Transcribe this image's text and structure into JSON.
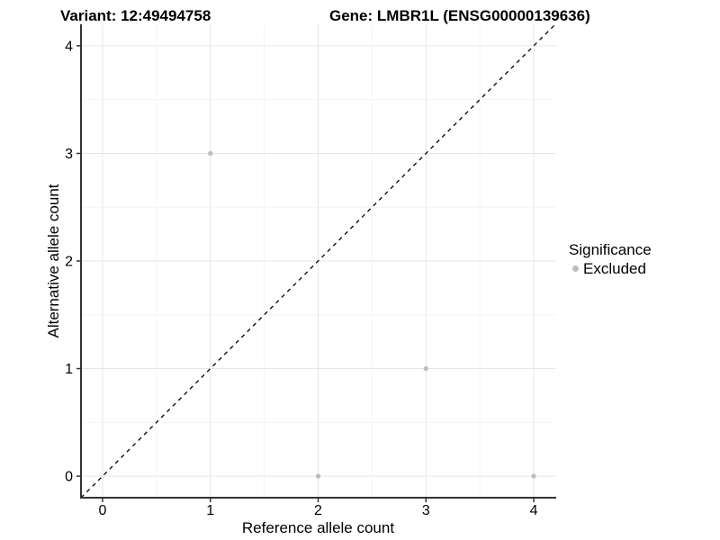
{
  "titles": {
    "left": "Variant: 12:49494758",
    "right": "Gene: LMBR1L (ENSG00000139636)"
  },
  "legend": {
    "title": "Significance",
    "entries": [
      {
        "label": "Excluded",
        "color": "#bebebe"
      }
    ]
  },
  "chart_data": {
    "type": "scatter",
    "title": "Variant: 12:49494758  |  Gene: LMBR1L (ENSG00000139636)",
    "xlabel": "Reference allele count",
    "ylabel": "Alternative allele count",
    "xlim": [
      -0.2,
      4.2
    ],
    "ylim": [
      -0.2,
      4.2
    ],
    "x_ticks": [
      0,
      1,
      2,
      3,
      4
    ],
    "y_ticks": [
      0,
      1,
      2,
      3,
      4
    ],
    "x_minor_ticks": [
      0.5,
      1.5,
      2.5,
      3.5
    ],
    "y_minor_ticks": [
      0.5,
      1.5,
      2.5,
      3.5
    ],
    "grid": true,
    "legend_position": "right",
    "series": [
      {
        "name": "Excluded",
        "color": "#bebebe",
        "marker": "circle",
        "marker_radius": 2.7,
        "points": [
          [
            1,
            3
          ],
          [
            2,
            0
          ],
          [
            3,
            1
          ],
          [
            4,
            0
          ]
        ]
      }
    ],
    "reference_line": {
      "type": "identity",
      "style": "dashed",
      "color": "#000000",
      "dash": [
        4.5,
        4.5
      ],
      "width": 1.3
    },
    "colors": {
      "axis": "#333333",
      "grid_major": "#e6e6e6",
      "grid_minor": "#f4f4f4",
      "tick_label": "#000000"
    },
    "tick_label_size": 16
  }
}
